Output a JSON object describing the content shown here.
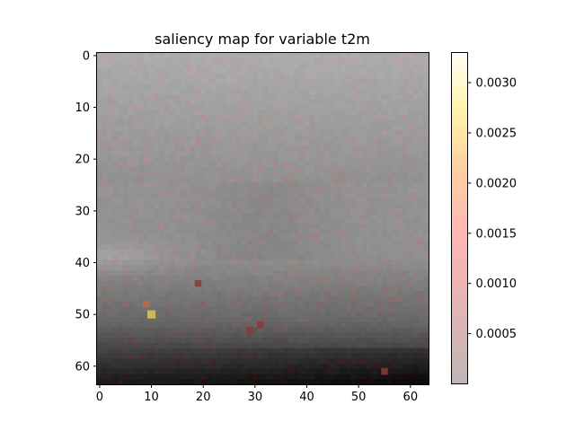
{
  "chart_data": {
    "type": "heatmap",
    "title": "saliency map for variable t2m",
    "grid_size": [
      64,
      64
    ],
    "xlim": [
      -0.5,
      63.5
    ],
    "ylim": [
      63.5,
      -0.5
    ],
    "x_ticks": [
      0,
      10,
      20,
      30,
      40,
      50,
      60
    ],
    "y_ticks": [
      0,
      10,
      20,
      30,
      40,
      50,
      60
    ],
    "colorbar": {
      "min": 0,
      "max": 0.0033,
      "ticks": [
        0.0005,
        0.001,
        0.0015,
        0.002,
        0.0025,
        0.003
      ],
      "tick_labels": [
        "0.0005",
        "0.0010",
        "0.0015",
        "0.0020",
        "0.0025",
        "0.0030"
      ],
      "colors": [
        "#bdb6b6",
        "#ffb4b4",
        "#ffc0a0",
        "#ffd690",
        "#fff0a0",
        "#fffff0"
      ]
    },
    "background": "grayscale temperature field",
    "hotspots": [
      {
        "x": 10,
        "y": 50,
        "value": 0.0027
      },
      {
        "x": 9,
        "y": 48,
        "value": 0.0018
      },
      {
        "x": 55,
        "y": 61,
        "value": 0.0011
      },
      {
        "x": 29,
        "y": 53,
        "value": 0.0012
      },
      {
        "x": 19,
        "y": 44,
        "value": 0.0006
      },
      {
        "x": 31,
        "y": 52,
        "value": 0.0008
      }
    ],
    "grid": false
  }
}
